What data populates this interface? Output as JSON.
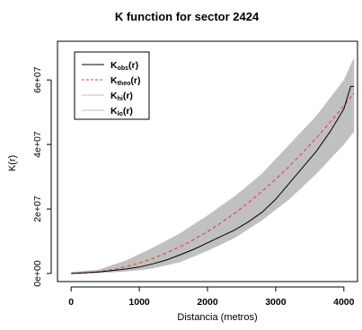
{
  "chart_data": {
    "type": "line",
    "title": "K function for sector 2424",
    "xlabel": "Distancia (metros)",
    "ylabel": "K(r)",
    "xlim": [
      -200,
      4200
    ],
    "ylim": [
      -2500000,
      72000000
    ],
    "xticks": [
      0,
      1000,
      2000,
      3000,
      4000
    ],
    "xtick_labels": [
      "0",
      "1000",
      "2000",
      "3000",
      "4000"
    ],
    "yticks": [
      0,
      20000000,
      40000000,
      60000000
    ],
    "ytick_labels": [
      "0e+00",
      "2e+07",
      "4e+07",
      "6e+07"
    ],
    "legend_position": "top-left",
    "grid": false,
    "series": [
      {
        "name": "obs",
        "label_main": "K",
        "label_sub": "obs",
        "style": "solid",
        "color": "#000000",
        "x": [
          0,
          200,
          400,
          600,
          800,
          900,
          1000,
          1200,
          1400,
          1600,
          1800,
          2000,
          2200,
          2400,
          2600,
          2800,
          3000,
          3200,
          3400,
          3600,
          3800,
          4000,
          4100,
          4150
        ],
        "y": [
          0,
          200000,
          500000,
          900000,
          1400000,
          1700000,
          2000000,
          3000000,
          4200000,
          5800000,
          7500000,
          9500000,
          11500000,
          13500000,
          16000000,
          19000000,
          23000000,
          28000000,
          33000000,
          38000000,
          44000000,
          51000000,
          58000000,
          58000000
        ]
      },
      {
        "name": "theo",
        "label_main": "K",
        "label_sub": "theo",
        "style": "dashed",
        "color": "#e8423a",
        "x": [
          0,
          200,
          400,
          600,
          800,
          1000,
          1200,
          1400,
          1600,
          1800,
          2000,
          2200,
          2400,
          2600,
          2800,
          3000,
          3200,
          3400,
          3600,
          3800,
          4000,
          4150
        ],
        "y": [
          0,
          130000,
          520000,
          1170000,
          2080000,
          3250000,
          4680000,
          6370000,
          8320000,
          10530000,
          13000000,
          15730000,
          18720000,
          21970000,
          25480000,
          29250000,
          33280000,
          37570000,
          42120000,
          46930000,
          52000000,
          55900000
        ]
      },
      {
        "name": "hi",
        "label_main": "K",
        "label_sub": "hi",
        "style": "solid",
        "color": "#c0c0c0",
        "x": [
          0,
          400,
          800,
          1000,
          1200,
          1600,
          2000,
          2400,
          2800,
          3200,
          3600,
          4000,
          4150
        ],
        "y": [
          500000,
          1200000,
          4000000,
          6000000,
          8000000,
          12500000,
          18000000,
          24000000,
          31000000,
          40000000,
          49000000,
          60000000,
          67000000
        ]
      },
      {
        "name": "lo",
        "label_main": "K",
        "label_sub": "lo",
        "style": "solid",
        "color": "#c0c0c0",
        "x": [
          0,
          400,
          800,
          1000,
          1200,
          1600,
          2000,
          2400,
          2800,
          3200,
          3600,
          4000,
          4150
        ],
        "y": [
          0,
          100000,
          600000,
          1000000,
          1600000,
          3500000,
          7000000,
          11000000,
          16500000,
          23000000,
          31000000,
          40000000,
          44000000
        ]
      }
    ],
    "envelope_color": "#c0c0c0"
  }
}
